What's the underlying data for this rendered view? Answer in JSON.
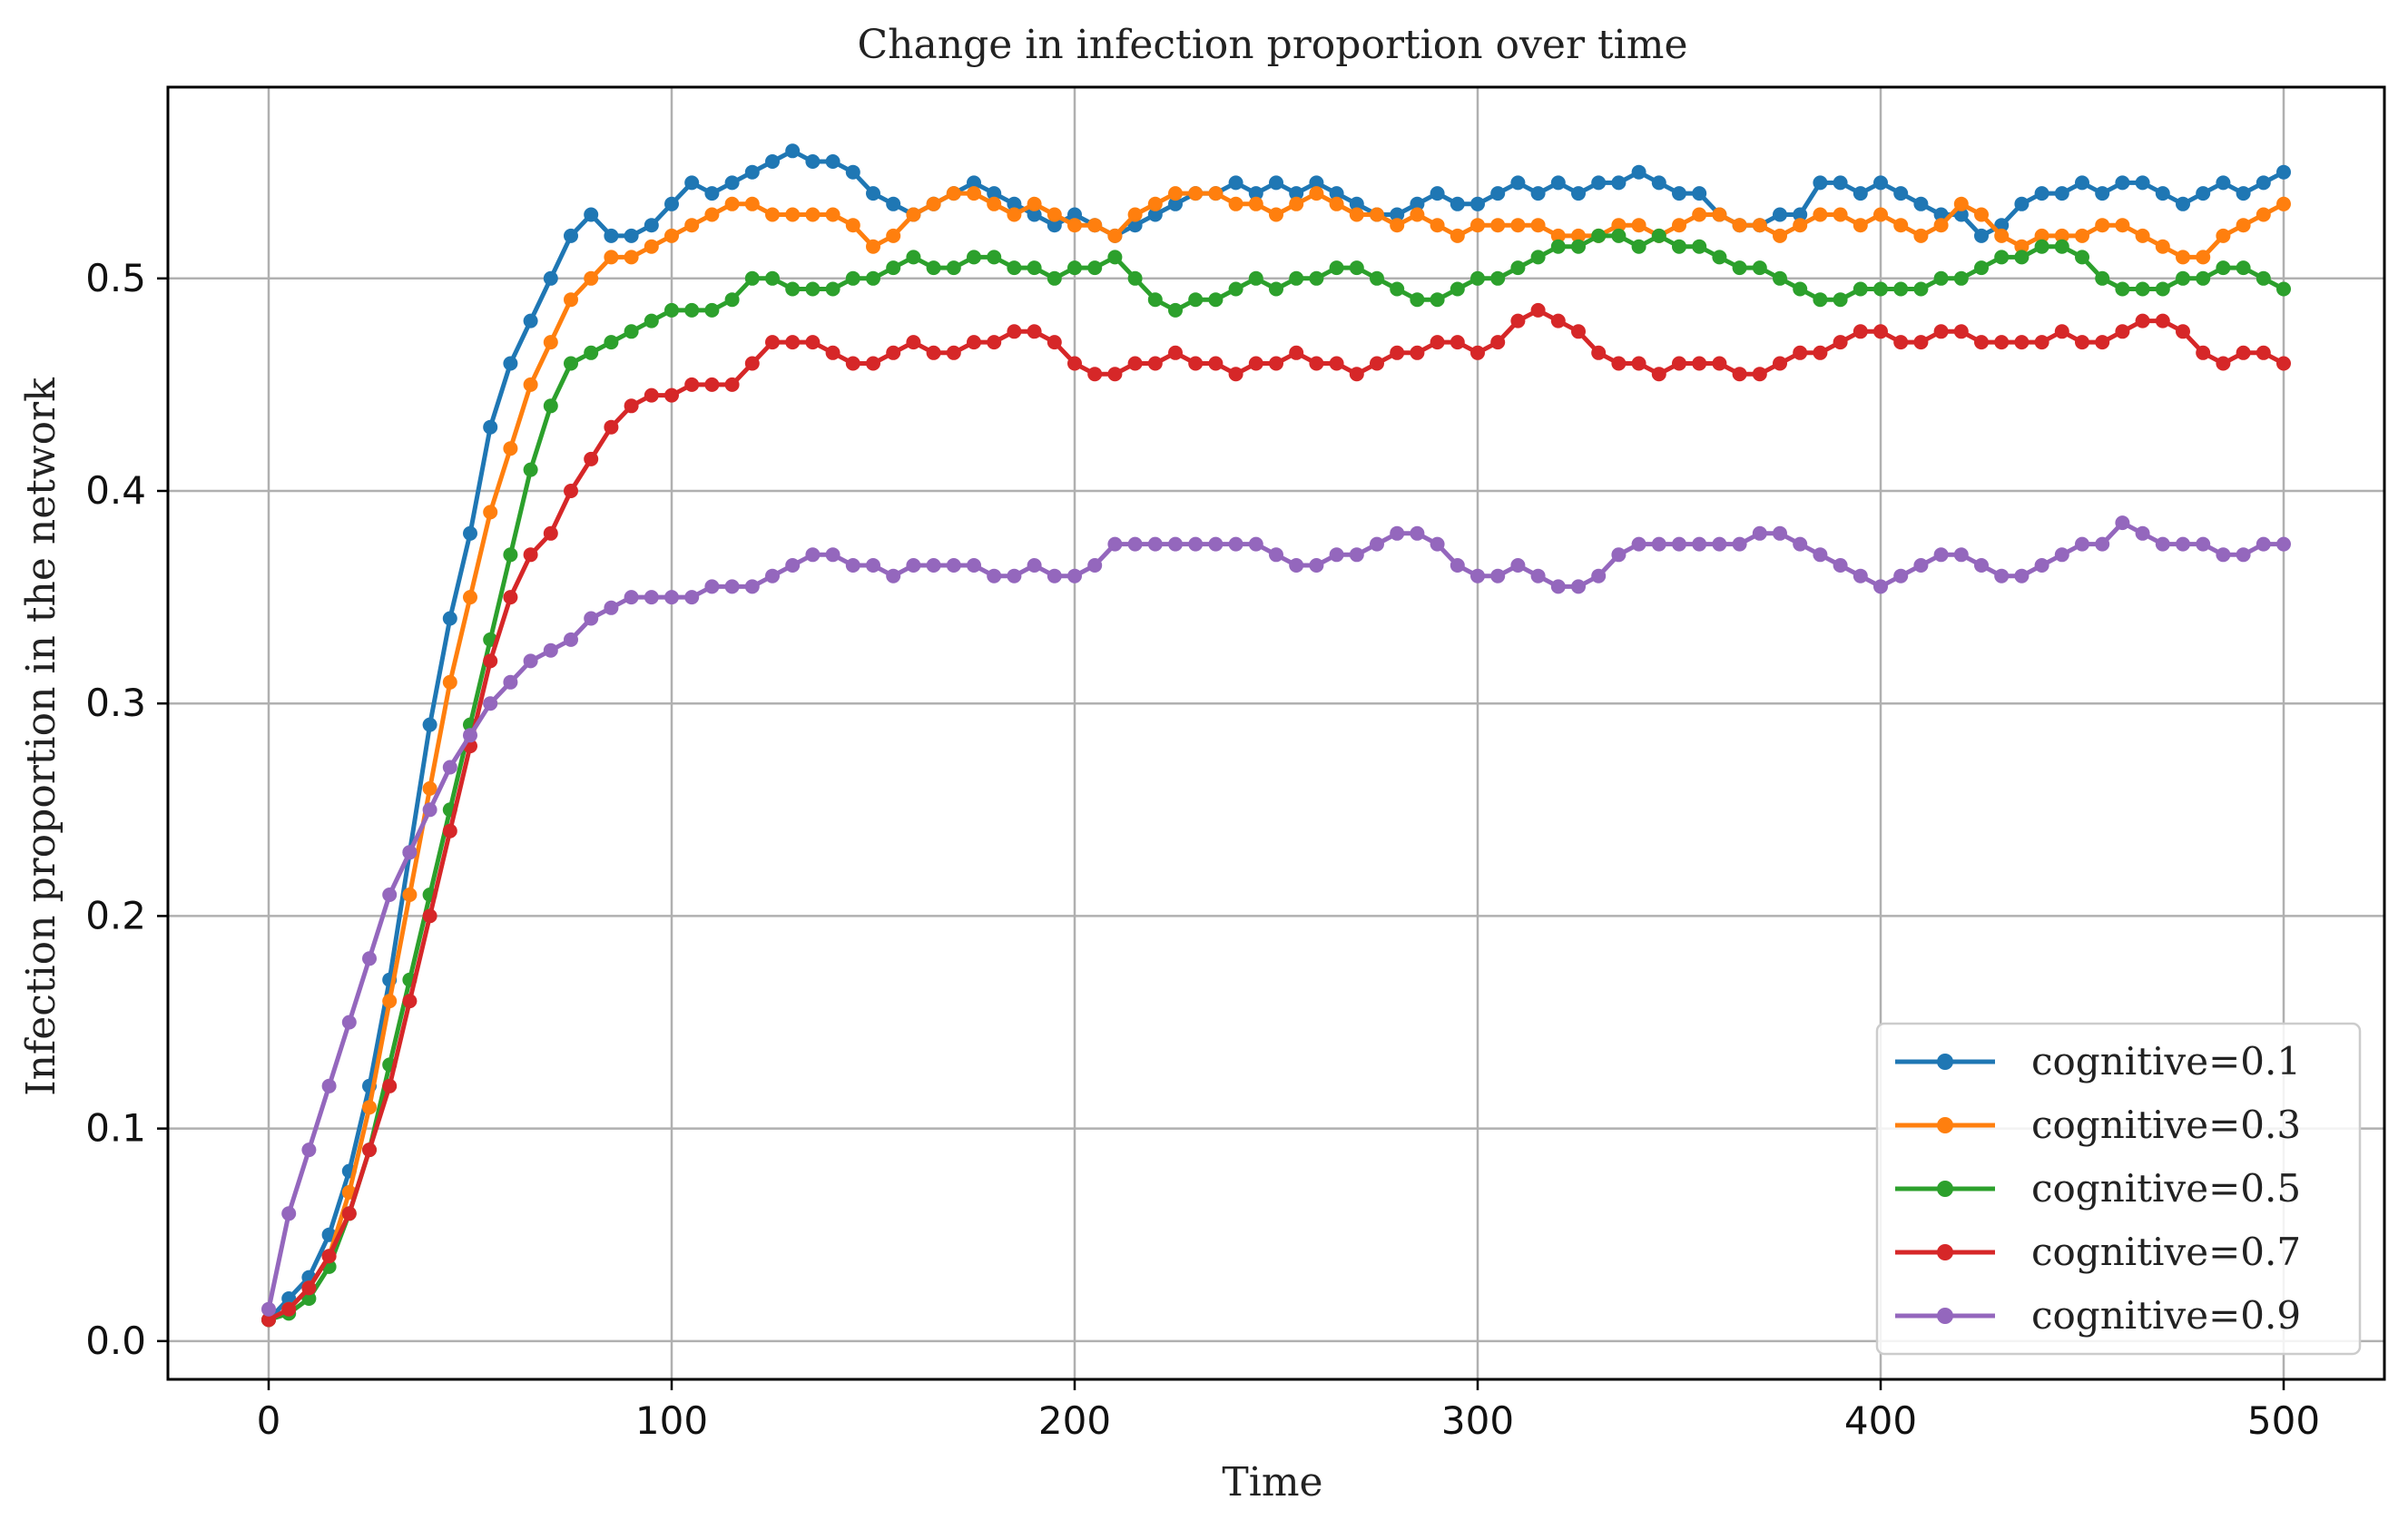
{
  "chart_data": {
    "type": "line",
    "title": "Change in infection proportion over time",
    "xlabel": "Time",
    "ylabel": "Infection proportion in the network",
    "xlim": [
      -25,
      525
    ],
    "ylim": [
      -0.018,
      0.59
    ],
    "x_ticks": [
      0,
      100,
      200,
      300,
      400,
      500
    ],
    "x_tick_labels": [
      "0",
      "100",
      "200",
      "300",
      "400",
      "500"
    ],
    "y_ticks": [
      0.0,
      0.1,
      0.2,
      0.3,
      0.4,
      0.5
    ],
    "y_tick_labels": [
      "0.0",
      "0.1",
      "0.2",
      "0.3",
      "0.4",
      "0.5"
    ],
    "grid": true,
    "legend_position": "lower right",
    "markers": "circle",
    "series": [
      {
        "name": "cognitive=0.1",
        "color": "#1f77b4",
        "x": [
          0,
          5,
          10,
          15,
          20,
          25,
          30,
          35,
          40,
          45,
          50,
          55,
          60,
          65,
          70,
          75,
          80,
          85,
          90,
          95,
          100,
          105,
          110,
          115,
          120,
          125,
          130,
          135,
          140,
          145,
          150,
          155,
          160,
          165,
          170,
          175,
          180,
          185,
          190,
          195,
          200,
          205,
          210,
          215,
          220,
          225,
          230,
          235,
          240,
          245,
          250,
          255,
          260,
          265,
          270,
          275,
          280,
          285,
          290,
          295,
          300,
          305,
          310,
          315,
          320,
          325,
          330,
          335,
          340,
          345,
          350,
          355,
          360,
          365,
          370,
          375,
          380,
          385,
          390,
          395,
          400,
          405,
          410,
          415,
          420,
          425,
          430,
          435,
          440,
          445,
          450,
          455,
          460,
          465,
          470,
          475,
          480,
          485,
          490,
          495,
          500
        ],
        "y": [
          0.01,
          0.02,
          0.03,
          0.05,
          0.08,
          0.12,
          0.17,
          0.23,
          0.29,
          0.34,
          0.38,
          0.43,
          0.46,
          0.48,
          0.5,
          0.52,
          0.53,
          0.52,
          0.52,
          0.525,
          0.535,
          0.545,
          0.54,
          0.545,
          0.55,
          0.555,
          0.56,
          0.555,
          0.555,
          0.55,
          0.54,
          0.535,
          0.53,
          0.535,
          0.54,
          0.545,
          0.54,
          0.535,
          0.53,
          0.525,
          0.53,
          0.525,
          0.52,
          0.525,
          0.53,
          0.535,
          0.54,
          0.54,
          0.545,
          0.54,
          0.545,
          0.54,
          0.545,
          0.54,
          0.535,
          0.53,
          0.53,
          0.535,
          0.54,
          0.535,
          0.535,
          0.54,
          0.545,
          0.54,
          0.545,
          0.54,
          0.545,
          0.545,
          0.55,
          0.545,
          0.54,
          0.54,
          0.53,
          0.525,
          0.525,
          0.53,
          0.53,
          0.545,
          0.545,
          0.54,
          0.545,
          0.54,
          0.535,
          0.53,
          0.53,
          0.52,
          0.525,
          0.535,
          0.54,
          0.54,
          0.545,
          0.54,
          0.545,
          0.545,
          0.54,
          0.535,
          0.54,
          0.545,
          0.54,
          0.545,
          0.55
        ]
      },
      {
        "name": "cognitive=0.3",
        "color": "#ff7f0e",
        "x": [
          0,
          5,
          10,
          15,
          20,
          25,
          30,
          35,
          40,
          45,
          50,
          55,
          60,
          65,
          70,
          75,
          80,
          85,
          90,
          95,
          100,
          105,
          110,
          115,
          120,
          125,
          130,
          135,
          140,
          145,
          150,
          155,
          160,
          165,
          170,
          175,
          180,
          185,
          190,
          195,
          200,
          205,
          210,
          215,
          220,
          225,
          230,
          235,
          240,
          245,
          250,
          255,
          260,
          265,
          270,
          275,
          280,
          285,
          290,
          295,
          300,
          305,
          310,
          315,
          320,
          325,
          330,
          335,
          340,
          345,
          350,
          355,
          360,
          365,
          370,
          375,
          380,
          385,
          390,
          395,
          400,
          405,
          410,
          415,
          420,
          425,
          430,
          435,
          440,
          445,
          450,
          455,
          460,
          465,
          470,
          475,
          480,
          485,
          490,
          495,
          500
        ],
        "y": [
          0.01,
          0.015,
          0.025,
          0.04,
          0.07,
          0.11,
          0.16,
          0.21,
          0.26,
          0.31,
          0.35,
          0.39,
          0.42,
          0.45,
          0.47,
          0.49,
          0.5,
          0.51,
          0.51,
          0.515,
          0.52,
          0.525,
          0.53,
          0.535,
          0.535,
          0.53,
          0.53,
          0.53,
          0.53,
          0.525,
          0.515,
          0.52,
          0.53,
          0.535,
          0.54,
          0.54,
          0.535,
          0.53,
          0.535,
          0.53,
          0.525,
          0.525,
          0.52,
          0.53,
          0.535,
          0.54,
          0.54,
          0.54,
          0.535,
          0.535,
          0.53,
          0.535,
          0.54,
          0.535,
          0.53,
          0.53,
          0.525,
          0.53,
          0.525,
          0.52,
          0.525,
          0.525,
          0.525,
          0.525,
          0.52,
          0.52,
          0.52,
          0.525,
          0.525,
          0.52,
          0.525,
          0.53,
          0.53,
          0.525,
          0.525,
          0.52,
          0.525,
          0.53,
          0.53,
          0.525,
          0.53,
          0.525,
          0.52,
          0.525,
          0.535,
          0.53,
          0.52,
          0.515,
          0.52,
          0.52,
          0.52,
          0.525,
          0.525,
          0.52,
          0.515,
          0.51,
          0.51,
          0.52,
          0.525,
          0.53,
          0.535
        ]
      },
      {
        "name": "cognitive=0.5",
        "color": "#2ca02c",
        "x": [
          0,
          5,
          10,
          15,
          20,
          25,
          30,
          35,
          40,
          45,
          50,
          55,
          60,
          65,
          70,
          75,
          80,
          85,
          90,
          95,
          100,
          105,
          110,
          115,
          120,
          125,
          130,
          135,
          140,
          145,
          150,
          155,
          160,
          165,
          170,
          175,
          180,
          185,
          190,
          195,
          200,
          205,
          210,
          215,
          220,
          225,
          230,
          235,
          240,
          245,
          250,
          255,
          260,
          265,
          270,
          275,
          280,
          285,
          290,
          295,
          300,
          305,
          310,
          315,
          320,
          325,
          330,
          335,
          340,
          345,
          350,
          355,
          360,
          365,
          370,
          375,
          380,
          385,
          390,
          395,
          400,
          405,
          410,
          415,
          420,
          425,
          430,
          435,
          440,
          445,
          450,
          455,
          460,
          465,
          470,
          475,
          480,
          485,
          490,
          495,
          500
        ],
        "y": [
          0.01,
          0.013,
          0.02,
          0.035,
          0.06,
          0.09,
          0.13,
          0.17,
          0.21,
          0.25,
          0.29,
          0.33,
          0.37,
          0.41,
          0.44,
          0.46,
          0.465,
          0.47,
          0.475,
          0.48,
          0.485,
          0.485,
          0.485,
          0.49,
          0.5,
          0.5,
          0.495,
          0.495,
          0.495,
          0.5,
          0.5,
          0.505,
          0.51,
          0.505,
          0.505,
          0.51,
          0.51,
          0.505,
          0.505,
          0.5,
          0.505,
          0.505,
          0.51,
          0.5,
          0.49,
          0.485,
          0.49,
          0.49,
          0.495,
          0.5,
          0.495,
          0.5,
          0.5,
          0.505,
          0.505,
          0.5,
          0.495,
          0.49,
          0.49,
          0.495,
          0.5,
          0.5,
          0.505,
          0.51,
          0.515,
          0.515,
          0.52,
          0.52,
          0.515,
          0.52,
          0.515,
          0.515,
          0.51,
          0.505,
          0.505,
          0.5,
          0.495,
          0.49,
          0.49,
          0.495,
          0.495,
          0.495,
          0.495,
          0.5,
          0.5,
          0.505,
          0.51,
          0.51,
          0.515,
          0.515,
          0.51,
          0.5,
          0.495,
          0.495,
          0.495,
          0.5,
          0.5,
          0.505,
          0.505,
          0.5,
          0.495
        ]
      },
      {
        "name": "cognitive=0.7",
        "color": "#d62728",
        "x": [
          0,
          5,
          10,
          15,
          20,
          25,
          30,
          35,
          40,
          45,
          50,
          55,
          60,
          65,
          70,
          75,
          80,
          85,
          90,
          95,
          100,
          105,
          110,
          115,
          120,
          125,
          130,
          135,
          140,
          145,
          150,
          155,
          160,
          165,
          170,
          175,
          180,
          185,
          190,
          195,
          200,
          205,
          210,
          215,
          220,
          225,
          230,
          235,
          240,
          245,
          250,
          255,
          260,
          265,
          270,
          275,
          280,
          285,
          290,
          295,
          300,
          305,
          310,
          315,
          320,
          325,
          330,
          335,
          340,
          345,
          350,
          355,
          360,
          365,
          370,
          375,
          380,
          385,
          390,
          395,
          400,
          405,
          410,
          415,
          420,
          425,
          430,
          435,
          440,
          445,
          450,
          455,
          460,
          465,
          470,
          475,
          480,
          485,
          490,
          495,
          500
        ],
        "y": [
          0.01,
          0.015,
          0.025,
          0.04,
          0.06,
          0.09,
          0.12,
          0.16,
          0.2,
          0.24,
          0.28,
          0.32,
          0.35,
          0.37,
          0.38,
          0.4,
          0.415,
          0.43,
          0.44,
          0.445,
          0.445,
          0.45,
          0.45,
          0.45,
          0.46,
          0.47,
          0.47,
          0.47,
          0.465,
          0.46,
          0.46,
          0.465,
          0.47,
          0.465,
          0.465,
          0.47,
          0.47,
          0.475,
          0.475,
          0.47,
          0.46,
          0.455,
          0.455,
          0.46,
          0.46,
          0.465,
          0.46,
          0.46,
          0.455,
          0.46,
          0.46,
          0.465,
          0.46,
          0.46,
          0.455,
          0.46,
          0.465,
          0.465,
          0.47,
          0.47,
          0.465,
          0.47,
          0.48,
          0.485,
          0.48,
          0.475,
          0.465,
          0.46,
          0.46,
          0.455,
          0.46,
          0.46,
          0.46,
          0.455,
          0.455,
          0.46,
          0.465,
          0.465,
          0.47,
          0.475,
          0.475,
          0.47,
          0.47,
          0.475,
          0.475,
          0.47,
          0.47,
          0.47,
          0.47,
          0.475,
          0.47,
          0.47,
          0.475,
          0.48,
          0.48,
          0.475,
          0.465,
          0.46,
          0.465,
          0.465,
          0.46
        ]
      },
      {
        "name": "cognitive=0.9",
        "color": "#9467bd",
        "x": [
          0,
          5,
          10,
          15,
          20,
          25,
          30,
          35,
          40,
          45,
          50,
          55,
          60,
          65,
          70,
          75,
          80,
          85,
          90,
          95,
          100,
          105,
          110,
          115,
          120,
          125,
          130,
          135,
          140,
          145,
          150,
          155,
          160,
          165,
          170,
          175,
          180,
          185,
          190,
          195,
          200,
          205,
          210,
          215,
          220,
          225,
          230,
          235,
          240,
          245,
          250,
          255,
          260,
          265,
          270,
          275,
          280,
          285,
          290,
          295,
          300,
          305,
          310,
          315,
          320,
          325,
          330,
          335,
          340,
          345,
          350,
          355,
          360,
          365,
          370,
          375,
          380,
          385,
          390,
          395,
          400,
          405,
          410,
          415,
          420,
          425,
          430,
          435,
          440,
          445,
          450,
          455,
          460,
          465,
          470,
          475,
          480,
          485,
          490,
          495,
          500
        ],
        "y": [
          0.015,
          0.06,
          0.09,
          0.12,
          0.15,
          0.18,
          0.21,
          0.23,
          0.25,
          0.27,
          0.285,
          0.3,
          0.31,
          0.32,
          0.325,
          0.33,
          0.34,
          0.345,
          0.35,
          0.35,
          0.35,
          0.35,
          0.355,
          0.355,
          0.355,
          0.36,
          0.365,
          0.37,
          0.37,
          0.365,
          0.365,
          0.36,
          0.365,
          0.365,
          0.365,
          0.365,
          0.36,
          0.36,
          0.365,
          0.36,
          0.36,
          0.365,
          0.375,
          0.375,
          0.375,
          0.375,
          0.375,
          0.375,
          0.375,
          0.375,
          0.37,
          0.365,
          0.365,
          0.37,
          0.37,
          0.375,
          0.38,
          0.38,
          0.375,
          0.365,
          0.36,
          0.36,
          0.365,
          0.36,
          0.355,
          0.355,
          0.36,
          0.37,
          0.375,
          0.375,
          0.375,
          0.375,
          0.375,
          0.375,
          0.38,
          0.38,
          0.375,
          0.37,
          0.365,
          0.36,
          0.355,
          0.36,
          0.365,
          0.37,
          0.37,
          0.365,
          0.36,
          0.36,
          0.365,
          0.37,
          0.375,
          0.375,
          0.385,
          0.38,
          0.375,
          0.375,
          0.375,
          0.37,
          0.37,
          0.375,
          0.375
        ]
      }
    ]
  }
}
